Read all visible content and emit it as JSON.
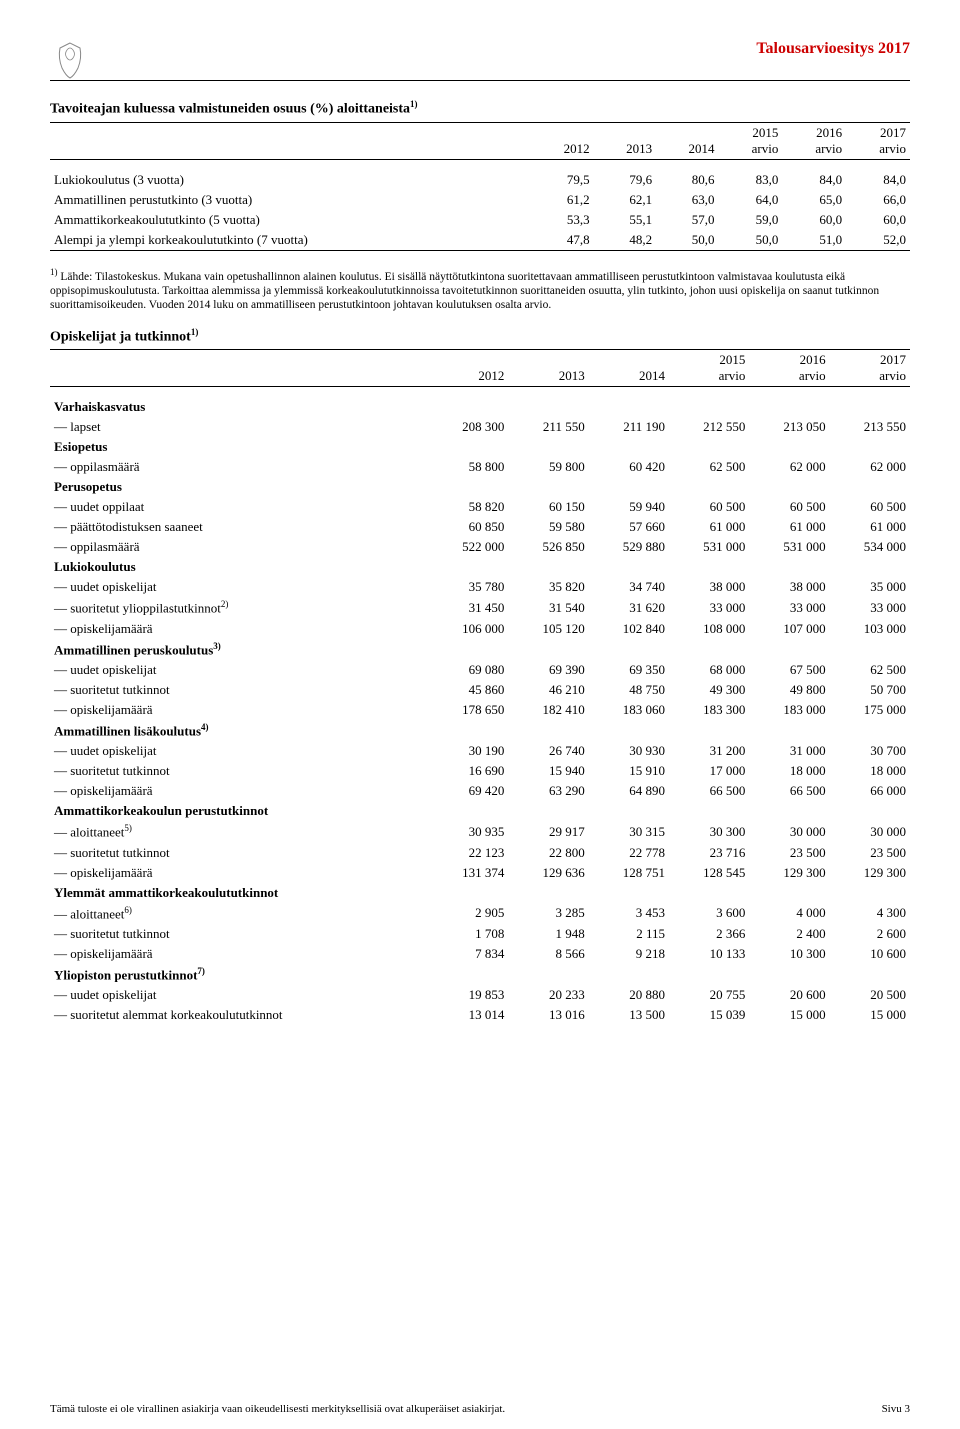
{
  "header": {
    "doc_title": "Talousarvioesitys 2017"
  },
  "table1": {
    "title": "Tavoiteajan kuluessa valmistuneiden osuus (%) aloittaneista",
    "title_sup": "1)",
    "col_years": [
      "2012",
      "2013",
      "2014"
    ],
    "col_est_years": [
      "2015",
      "2016",
      "2017"
    ],
    "col_est_label": "arvio",
    "rows": [
      {
        "label": "Lukiokoulutus (3 vuotta)",
        "v": [
          "79,5",
          "79,6",
          "80,6",
          "83,0",
          "84,0",
          "84,0"
        ]
      },
      {
        "label": "Ammatillinen perustutkinto (3 vuotta)",
        "v": [
          "61,2",
          "62,1",
          "63,0",
          "64,0",
          "65,0",
          "66,0"
        ]
      },
      {
        "label": "Ammattikorkeakoulututkinto (5 vuotta)",
        "v": [
          "53,3",
          "55,1",
          "57,0",
          "59,0",
          "60,0",
          "60,0"
        ]
      },
      {
        "label": "Alempi ja ylempi korkeakoulututkinto (7 vuotta)",
        "v": [
          "47,8",
          "48,2",
          "50,0",
          "50,0",
          "51,0",
          "52,0"
        ]
      }
    ],
    "footnote_marker": "1)",
    "footnote": " Lähde: Tilastokeskus. Mukana vain opetushallinnon alainen koulutus. Ei sisällä näyttötutkintona suoritettavaan ammatilliseen perustutkintoon valmistavaa koulutusta eikä oppisopimuskoulutusta. Tarkoittaa alemmissa ja ylemmissä korkeakoulututkinnoissa tavoitetutkinnon suorittaneiden osuutta, ylin tutkinto, johon uusi opiskelija on saanut tutkinnon suorittamisoikeuden. Vuoden 2014 luku on ammatilliseen perustutkintoon johtavan koulutuksen osalta arvio."
  },
  "table2": {
    "title": "Opiskelijat ja tutkinnot",
    "title_sup": "1)",
    "col_years": [
      "2012",
      "2013",
      "2014"
    ],
    "col_est_years": [
      "2015",
      "2016",
      "2017"
    ],
    "col_est_label": "arvio",
    "rows": [
      {
        "label": "Varhaiskasvatus",
        "bold": true
      },
      {
        "label": "— lapset",
        "v": [
          "208 300",
          "211 550",
          "211 190",
          "212 550",
          "213 050",
          "213 550"
        ]
      },
      {
        "label": "Esiopetus",
        "bold": true
      },
      {
        "label": "— oppilasmäärä",
        "v": [
          "58 800",
          "59 800",
          "60 420",
          "62 500",
          "62 000",
          "62 000"
        ]
      },
      {
        "label": "Perusopetus",
        "bold": true
      },
      {
        "label": "— uudet oppilaat",
        "v": [
          "58 820",
          "60 150",
          "59 940",
          "60 500",
          "60 500",
          "60 500"
        ]
      },
      {
        "label": "— päättötodistuksen saaneet",
        "v": [
          "60 850",
          "59 580",
          "57 660",
          "61 000",
          "61 000",
          "61 000"
        ]
      },
      {
        "label": "— oppilasmäärä",
        "v": [
          "522 000",
          "526 850",
          "529 880",
          "531 000",
          "531 000",
          "534 000"
        ]
      },
      {
        "label": "Lukiokoulutus",
        "bold": true
      },
      {
        "label": "— uudet opiskelijat",
        "v": [
          "35 780",
          "35 820",
          "34 740",
          "38 000",
          "38 000",
          "35 000"
        ]
      },
      {
        "label": "— suoritetut ylioppilastutkinnot",
        "sup": "2)",
        "v": [
          "31 450",
          "31 540",
          "31 620",
          "33 000",
          "33 000",
          "33 000"
        ]
      },
      {
        "label": "— opiskelijamäärä",
        "v": [
          "106 000",
          "105 120",
          "102 840",
          "108 000",
          "107 000",
          "103 000"
        ]
      },
      {
        "label": "Ammatillinen peruskoulutus",
        "sup": "3)",
        "bold": true
      },
      {
        "label": "— uudet opiskelijat",
        "v": [
          "69 080",
          "69 390",
          "69 350",
          "68 000",
          "67 500",
          "62 500"
        ]
      },
      {
        "label": "— suoritetut tutkinnot",
        "v": [
          "45 860",
          "46 210",
          "48 750",
          "49 300",
          "49 800",
          "50 700"
        ]
      },
      {
        "label": "— opiskelijamäärä",
        "v": [
          "178 650",
          "182 410",
          "183 060",
          "183 300",
          "183 000",
          "175 000"
        ]
      },
      {
        "label": "Ammatillinen lisäkoulutus",
        "sup": "4)",
        "bold": true
      },
      {
        "label": "— uudet opiskelijat",
        "v": [
          "30 190",
          "26 740",
          "30 930",
          "31 200",
          "31 000",
          "30 700"
        ]
      },
      {
        "label": "— suoritetut tutkinnot",
        "v": [
          "16 690",
          "15 940",
          "15 910",
          "17 000",
          "18 000",
          "18 000"
        ]
      },
      {
        "label": "— opiskelijamäärä",
        "v": [
          "69 420",
          "63 290",
          "64 890",
          "66 500",
          "66 500",
          "66 000"
        ]
      },
      {
        "label": "Ammattikorkeakoulun perustutkinnot",
        "bold": true
      },
      {
        "label": "— aloittaneet",
        "sup": "5)",
        "v": [
          "30 935",
          "29 917",
          "30 315",
          "30 300",
          "30 000",
          "30 000"
        ]
      },
      {
        "label": "— suoritetut tutkinnot",
        "v": [
          "22 123",
          "22 800",
          "22 778",
          "23 716",
          "23 500",
          "23 500"
        ]
      },
      {
        "label": "— opiskelijamäärä",
        "v": [
          "131 374",
          "129 636",
          "128 751",
          "128 545",
          "129 300",
          "129 300"
        ]
      },
      {
        "label": "Ylemmät ammattikorkeakoulututkinnot",
        "bold": true
      },
      {
        "label": "— aloittaneet",
        "sup": "6)",
        "v": [
          "2 905",
          "3 285",
          "3 453",
          "3 600",
          "4 000",
          "4 300"
        ]
      },
      {
        "label": "— suoritetut tutkinnot",
        "v": [
          "1 708",
          "1 948",
          "2 115",
          "2 366",
          "2 400",
          "2 600"
        ]
      },
      {
        "label": "— opiskelijamäärä",
        "v": [
          "7 834",
          "8 566",
          "9 218",
          "10 133",
          "10 300",
          "10 600"
        ]
      },
      {
        "label": "Yliopiston perustutkinnot",
        "sup": "7)",
        "bold": true
      },
      {
        "label": "— uudet opiskelijat",
        "v": [
          "19 853",
          "20 233",
          "20 880",
          "20 755",
          "20 600",
          "20 500"
        ]
      },
      {
        "label": "— suoritetut alemmat korkeakoulututkinnot",
        "v": [
          "13 014",
          "13 016",
          "13 500",
          "15 039",
          "15 000",
          "15 000"
        ]
      }
    ]
  },
  "footer": {
    "left": "Tämä tuloste ei ole virallinen asiakirja vaan oikeudellisesti merkityksellisiä ovat alkuperäiset asiakirjat.",
    "right": "Sivu 3"
  }
}
